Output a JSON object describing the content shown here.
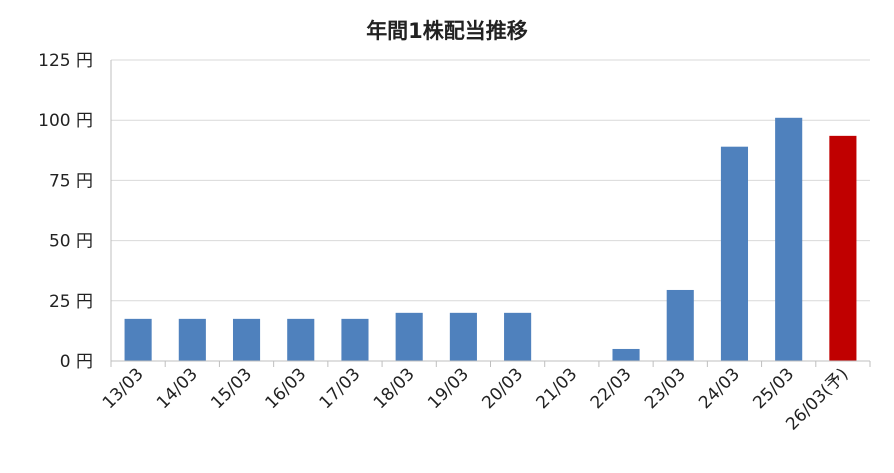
{
  "chart_data": {
    "type": "bar",
    "title": "年間1株配当推移",
    "categories": [
      "13/03",
      "14/03",
      "15/03",
      "16/03",
      "17/03",
      "18/03",
      "19/03",
      "20/03",
      "21/03",
      "22/03",
      "23/03",
      "24/03",
      "25/03",
      "26/03(予)"
    ],
    "values": [
      17.5,
      17.5,
      17.5,
      17.5,
      17.5,
      20,
      20,
      20,
      0,
      5,
      29.5,
      89,
      101,
      93.5
    ],
    "ylim": [
      0,
      125
    ],
    "yticks": [
      {
        "value": 0,
        "label": "0 円"
      },
      {
        "value": 25,
        "label": "25 円"
      },
      {
        "value": 50,
        "label": "50 円"
      },
      {
        "value": 75,
        "label": "75 円"
      },
      {
        "value": 100,
        "label": "100 円"
      },
      {
        "value": 125,
        "label": "125 円"
      }
    ],
    "grid": true,
    "colors": {
      "actual": "#4f81bd",
      "forecast": "#c00000"
    },
    "forecast_index": 13
  }
}
